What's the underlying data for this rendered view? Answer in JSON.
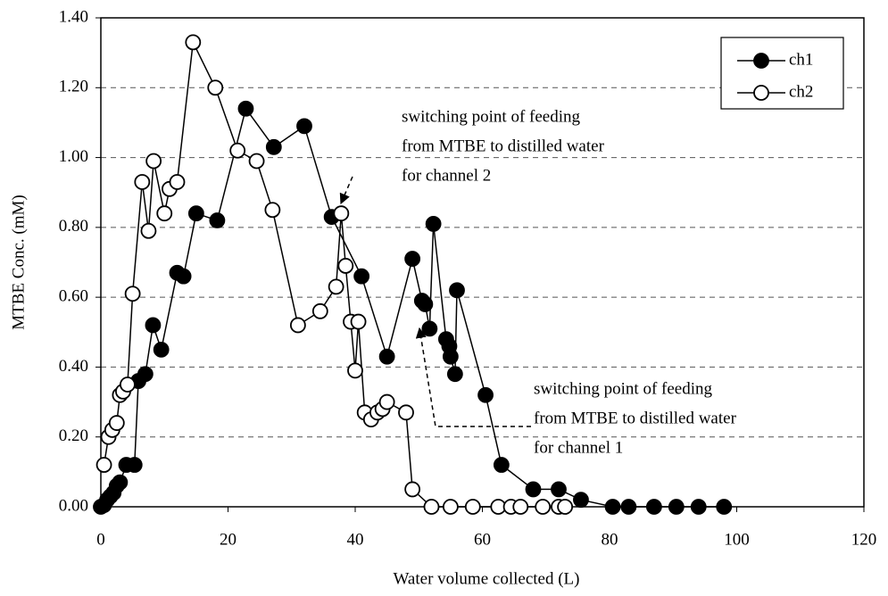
{
  "chart_data": {
    "type": "line",
    "xlabel": "Water volume collected (L)",
    "ylabel": "MTBE Conc. (mM)",
    "xlim": [
      0,
      120
    ],
    "xticks": [
      0,
      20,
      40,
      60,
      80,
      100,
      120
    ],
    "ylim": [
      0,
      1.4
    ],
    "yticks": [
      {
        "value": 0,
        "label": "0.00"
      },
      {
        "value": 0.2,
        "label": "0.20"
      },
      {
        "value": 0.4,
        "label": "0.40"
      },
      {
        "value": 0.6,
        "label": "0.60"
      },
      {
        "value": 0.8,
        "label": "0.80"
      },
      {
        "value": 1.0,
        "label": "1.00"
      },
      {
        "value": 1.2,
        "label": "1.20"
      },
      {
        "value": 1.4,
        "label": "1.40"
      }
    ],
    "grid": true,
    "legend": "upper right",
    "series": [
      {
        "name": "ch1",
        "color": "#000000",
        "marker": "filled",
        "x": [
          0,
          0.5,
          1,
          1.5,
          2,
          2.5,
          3,
          4,
          5.3,
          5.9,
          7,
          8.2,
          9.5,
          12,
          13,
          15,
          18.3,
          22.8,
          27.2,
          32,
          36.3,
          41,
          45,
          49,
          50.5,
          51,
          51.7,
          52.3,
          54.3,
          54.8,
          55,
          55.7,
          56,
          60.5,
          63,
          68,
          72,
          75.5,
          80.5,
          83,
          87,
          90.5,
          94,
          98
        ],
        "values": [
          0,
          0.005,
          0.02,
          0.03,
          0.04,
          0.06,
          0.07,
          0.12,
          0.12,
          0.36,
          0.38,
          0.52,
          0.45,
          0.67,
          0.66,
          0.84,
          0.82,
          1.14,
          1.03,
          1.09,
          0.83,
          0.66,
          0.43,
          0.71,
          0.59,
          0.58,
          0.51,
          0.81,
          0.48,
          0.46,
          0.43,
          0.38,
          0.62,
          0.32,
          0.12,
          0.05,
          0.05,
          0.02,
          0,
          0,
          0,
          0,
          0,
          0
        ]
      },
      {
        "name": "ch2",
        "color": "#000000",
        "marker": "open",
        "x": [
          0.5,
          1.2,
          1.8,
          2.5,
          3,
          3.5,
          4.2,
          5,
          6.5,
          7.5,
          8.3,
          10,
          10.8,
          12,
          14.5,
          18,
          21.5,
          24.5,
          27,
          31,
          34.5,
          37,
          37.8,
          38.5,
          39.3,
          40,
          40.5,
          41.5,
          42.5,
          43.5,
          44.3,
          45,
          48,
          49,
          52,
          55,
          58.5,
          62.5,
          64.5,
          66,
          69.5,
          72,
          73
        ],
        "values": [
          0.12,
          0.2,
          0.22,
          0.24,
          0.32,
          0.33,
          0.35,
          0.61,
          0.93,
          0.79,
          0.99,
          0.84,
          0.91,
          0.93,
          1.33,
          1.2,
          1.02,
          0.99,
          0.85,
          0.52,
          0.56,
          0.63,
          0.84,
          0.69,
          0.53,
          0.39,
          0.53,
          0.27,
          0.25,
          0.27,
          0.28,
          0.3,
          0.27,
          0.05,
          0,
          0,
          0,
          0,
          0,
          0,
          0,
          0,
          0
        ]
      }
    ],
    "annotations": [
      [
        "switching point of feeding",
        "from MTBE to distilled water",
        "for channel 2"
      ],
      [
        "switching point of feeding",
        "from MTBE to distilled water",
        "for channel 1"
      ]
    ]
  }
}
